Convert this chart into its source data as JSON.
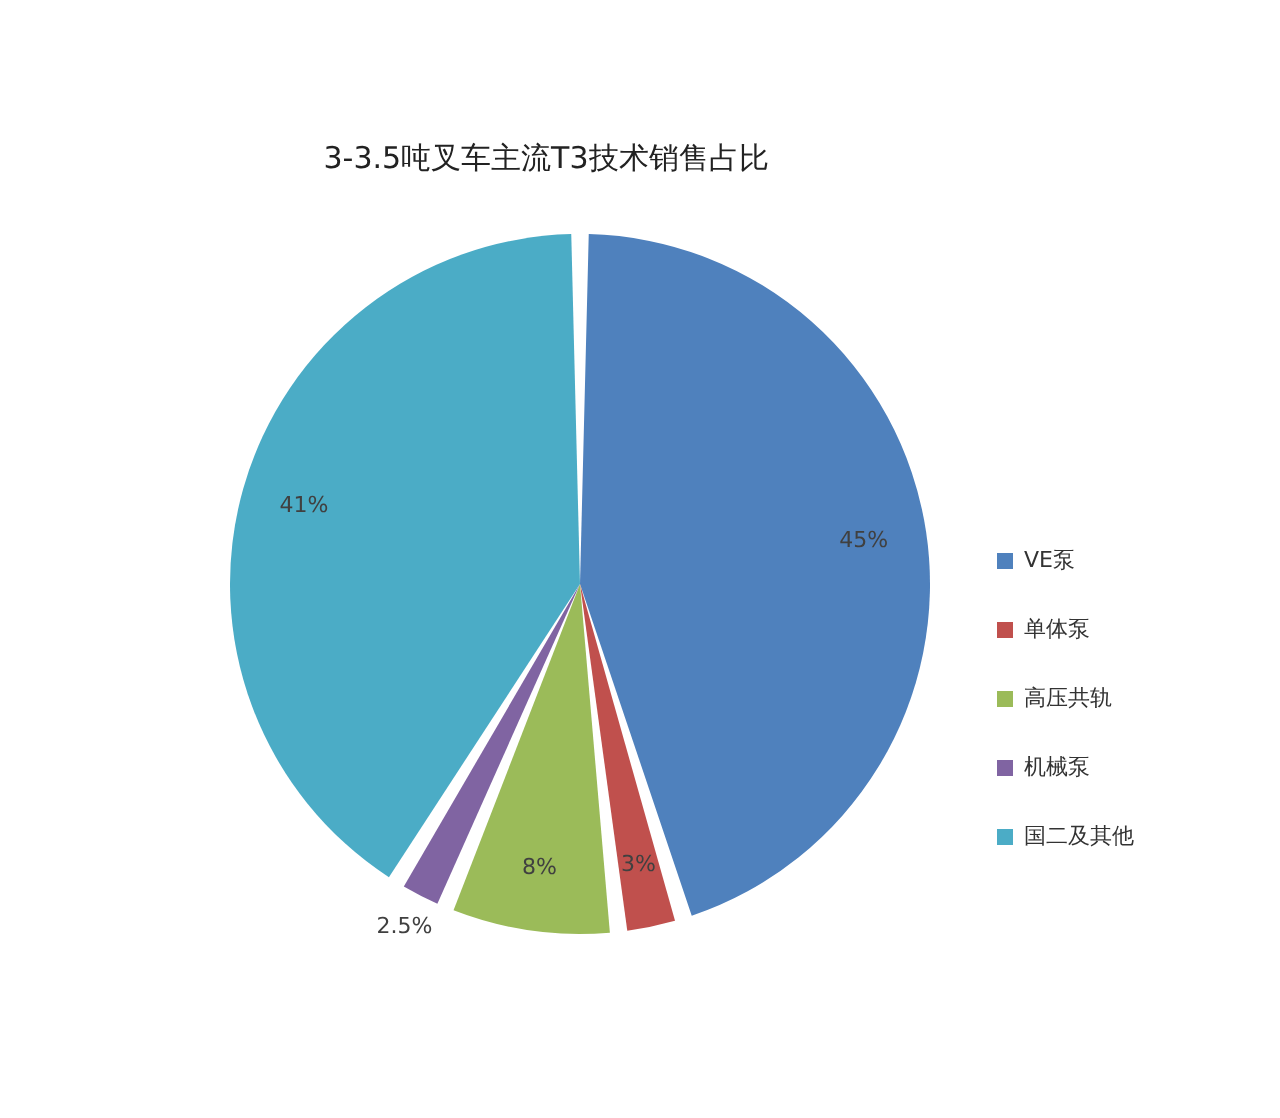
{
  "chart_data": {
    "type": "pie",
    "title": "3-3.5吨叉车主流T3技术销售占比",
    "categories": [
      "VE泵",
      "单体泵",
      "高压共轨",
      "机械泵",
      "国二及其他"
    ],
    "values": [
      45,
      3,
      8,
      2.5,
      41
    ],
    "colors": [
      "#4f81bd",
      "#c0504d",
      "#9bbb59",
      "#8064a2",
      "#4bacc6"
    ],
    "value_labels": [
      "45%",
      "3%",
      "8%",
      "2.5%",
      "41%"
    ],
    "legend": "right"
  }
}
